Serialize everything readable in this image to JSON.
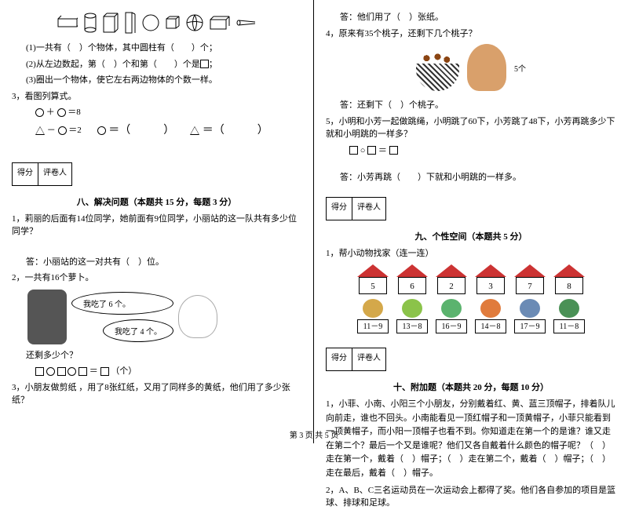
{
  "left": {
    "q1": "(1)一共有（　）个物体，其中圆柱有（　　）个；",
    "q2": "(2)从左边数起，第（　）个和第（　　）个是",
    "q2_suffix": "；",
    "q3": "(3)圈出一个物体，使它左右两边物体的个数一样。",
    "p3_title": "3，看图列算式。",
    "eq1_a": "＋",
    "eq1_b": "＝8",
    "eq2_a": "－",
    "eq2_b": "＝2",
    "circ_ans": "＝（　　　）",
    "tri_ans": "＝（　　　）",
    "score_l1": "得分",
    "score_l2": "评卷人",
    "sec8_title": "八、解决问题（本题共 15 分，每题 3 分）",
    "s8_q1": "1，莉丽的后面有14位同学，她前面有9位同学，小丽站的这一队共有多少位同学？",
    "s8_a1": "答：小丽站的这一对共有（　）位。",
    "s8_q2": "2，一共有16个萝卜。",
    "bubble1": "我吃了 6 个。",
    "bubble2": "我吃了 4 个。",
    "s8_q2b": "还剩多少个？",
    "s8_expr": "＝",
    "s8_unit": "（个）",
    "s8_q3": "3，小朋友做剪纸 ，用了8张红纸，又用了同样多的黄纸，他们用了多少张纸？"
  },
  "right": {
    "a3": "答：他们用了（　）张纸。",
    "q4": "4，原来有35个桃子，还剩下几个桃子？",
    "peach_label": "5个",
    "a4": "答：还剩下（　）个桃子。",
    "q5": "5，小明和小芳一起做跳绳，小明跳了60下，小芳跳了48下，小芳再跳多少下就和小明跳的一样多？",
    "q5_expr": "○",
    "q5_eq": "＝",
    "a5": "答：小芳再跳（　　）下就和小明跳的一样多。",
    "score_l1": "得分",
    "score_l2": "评卷人",
    "sec9_title": "九、个性空间（本题共 5 分）",
    "s9_q1": "1，帮小动物找家（连一连）",
    "houses": [
      "5",
      "6",
      "2",
      "3",
      "7",
      "8"
    ],
    "animals": [
      {
        "color": "#d4a84a",
        "expr": "11－9"
      },
      {
        "color": "#8bc34a",
        "expr": "13－8"
      },
      {
        "color": "#5bb36e",
        "expr": "16－9"
      },
      {
        "color": "#e07b3c",
        "expr": "14－8"
      },
      {
        "color": "#6b8bb5",
        "expr": "17－9"
      },
      {
        "color": "#4a9156",
        "expr": "11－8"
      }
    ],
    "sec10_title": "十、附加题（本题共 20 分，每题 10 分）",
    "s10_q1": "1，小菲、小南、小阳三个小朋友，分别戴着红、黄、蓝三顶帽子，排着队儿向前走，谁也不回头。小南能看见一顶红帽子和一顶黄帽子，小菲只能看到一顶黄帽子，而小阳一顶帽子也看不到。你知道走在第一个的是谁？谁又走在第二个？最后一个又是谁呢？他们又各自戴着什么颜色的帽子呢？（　）走在第一个，戴着（　）帽子；（　）走在第二个，戴着（　）帽子；（　）走在最后，戴着（　）帽子。",
    "s10_q2": "2，A、B、C三名运动员在一次运动会上都得了奖。他们各自参加的项目是篮球、排球和足球。"
  },
  "footer": "第 3 页 共 5 页"
}
